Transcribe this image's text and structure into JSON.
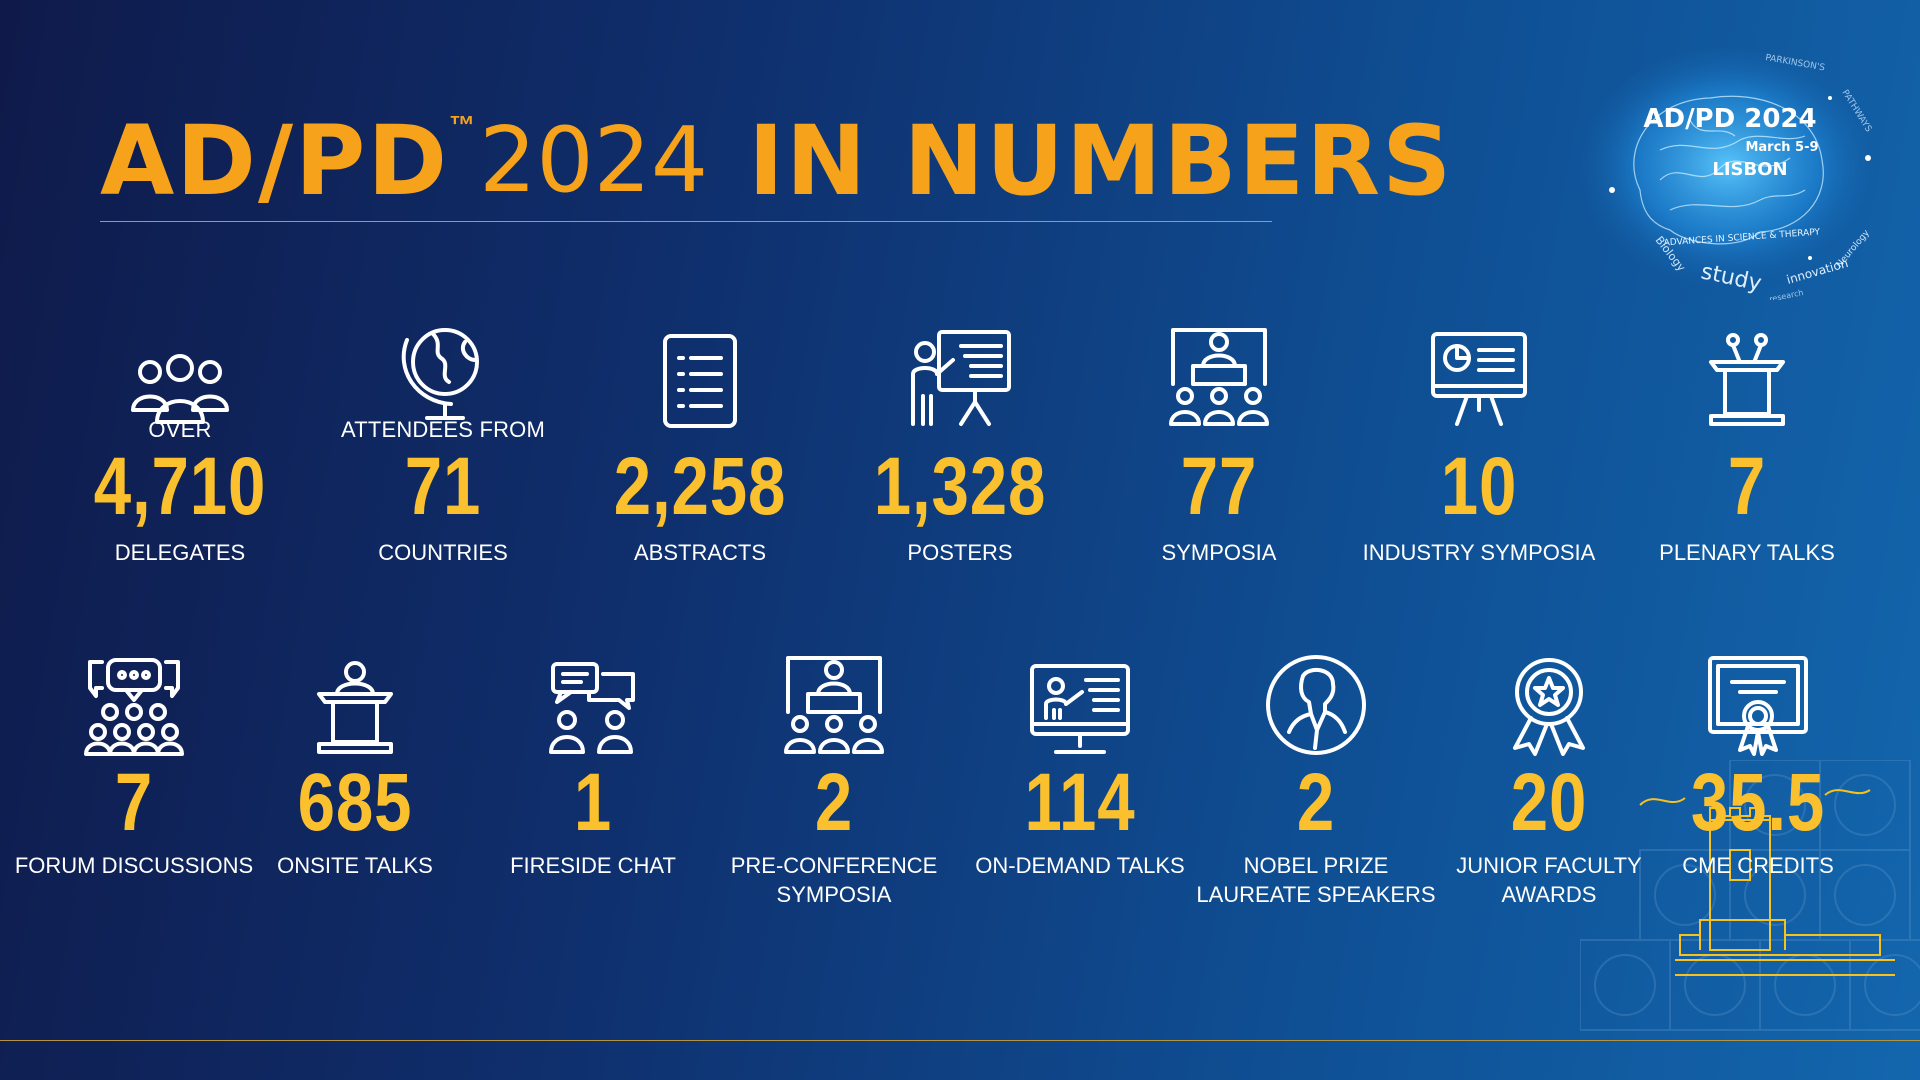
{
  "header": {
    "brand": "AD/PD",
    "tm": "™",
    "year": "2024",
    "suffix": "IN NUMBERS"
  },
  "badge": {
    "title": "AD/PD 2024",
    "dates": "March 5-9",
    "city": "LISBON",
    "ring_text": "ADVANCES IN SCIENCE & THERAPY",
    "words": [
      "PARKINSON'S",
      "PATHWAYS",
      "Biology",
      "study",
      "Neurology",
      "innovation",
      "research"
    ]
  },
  "stats_row1": [
    {
      "icon": "group-icon",
      "pre": "OVER",
      "value": "4,710",
      "label": "DELEGATES"
    },
    {
      "icon": "globe-icon",
      "pre": "ATTENDEES FROM",
      "value": "71",
      "label": "COUNTRIES"
    },
    {
      "icon": "document-icon",
      "pre": "",
      "value": "2,258",
      "label": "ABSTRACTS"
    },
    {
      "icon": "presenter-board-icon",
      "pre": "",
      "value": "1,328",
      "label": "POSTERS"
    },
    {
      "icon": "panel-audience-icon",
      "pre": "",
      "value": "77",
      "label": "SYMPOSIA"
    },
    {
      "icon": "chart-board-icon",
      "pre": "",
      "value": "10",
      "label": "INDUSTRY SYMPOSIA"
    },
    {
      "icon": "podium-mics-icon",
      "pre": "",
      "value": "7",
      "label": "PLENARY TALKS"
    }
  ],
  "stats_row2": [
    {
      "icon": "forum-icon",
      "value": "7",
      "label": "FORUM DISCUSSIONS"
    },
    {
      "icon": "podium-speaker-icon",
      "value": "685",
      "label": "ONSITE TALKS"
    },
    {
      "icon": "chat-people-icon",
      "value": "1",
      "label": "FIRESIDE CHAT"
    },
    {
      "icon": "panel-audience-icon",
      "value": "2",
      "label": "PRE-CONFERENCE SYMPOSIA"
    },
    {
      "icon": "monitor-presenter-icon",
      "value": "114",
      "label": "ON-DEMAND TALKS"
    },
    {
      "icon": "laureate-portrait-icon",
      "value": "2",
      "label": "NOBEL PRIZE LAUREATE SPEAKERS"
    },
    {
      "icon": "award-rosette-icon",
      "value": "20",
      "label": "JUNIOR FACULTY AWARDS"
    },
    {
      "icon": "certificate-icon",
      "value": "35.5",
      "label": "CME CREDITS"
    }
  ],
  "colors": {
    "accent_orange": "#f6a31b",
    "number_yellow": "#fbc02d",
    "rule_gold": "#b99a3a",
    "bg_dark": "#0f1a4a",
    "bg_light": "#1366ad"
  }
}
